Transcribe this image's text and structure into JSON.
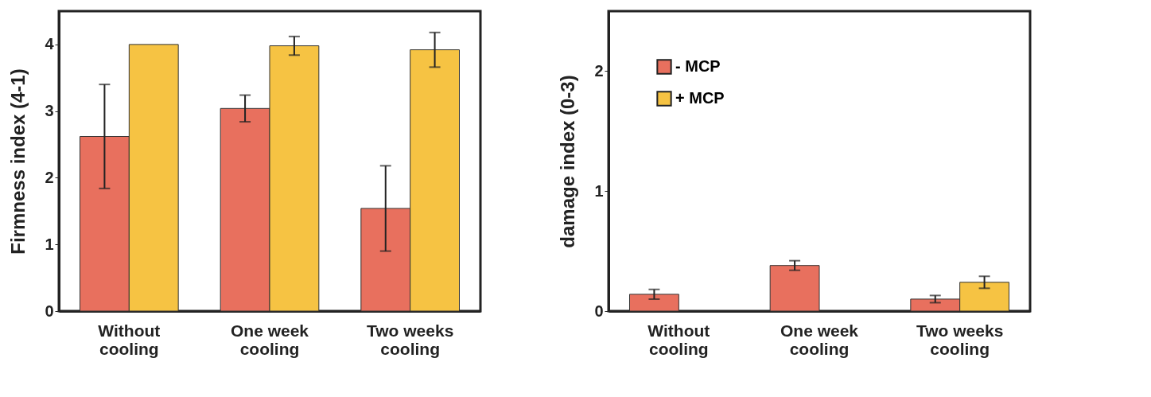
{
  "chart_data": [
    {
      "type": "bar",
      "ylabel": "Firmness index  (4-1)",
      "categories": [
        "Without cooling",
        "One week cooling",
        "Two weeks cooling"
      ],
      "ylim": [
        0,
        4.5
      ],
      "yticks": [
        0,
        1,
        2,
        3,
        4
      ],
      "grid": false,
      "legend": false,
      "series": [
        {
          "color": "#e8705e",
          "values": [
            2.62,
            3.04,
            1.54
          ],
          "errors": [
            0.78,
            0.2,
            0.64
          ]
        },
        {
          "color": "#f6c343",
          "values": [
            4.0,
            3.98,
            3.92
          ],
          "errors": [
            null,
            0.14,
            0.26
          ]
        }
      ]
    },
    {
      "type": "bar",
      "ylabel": "damage index (0-3)",
      "categories": [
        "Without cooling",
        "One week cooling",
        "Two weeks cooling"
      ],
      "ylim": [
        0,
        2.5
      ],
      "yticks": [
        0,
        1,
        2
      ],
      "grid": false,
      "legend": "top left",
      "series": [
        {
          "name": "- MCP",
          "color": "#e8705e",
          "values": [
            0.14,
            0.38,
            0.1
          ],
          "errors": [
            0.04,
            0.04,
            0.03
          ]
        },
        {
          "name": "+ MCP",
          "color": "#f6c343",
          "values": [
            0,
            0,
            0.24
          ],
          "errors": [
            null,
            null,
            0.05
          ]
        }
      ]
    }
  ]
}
